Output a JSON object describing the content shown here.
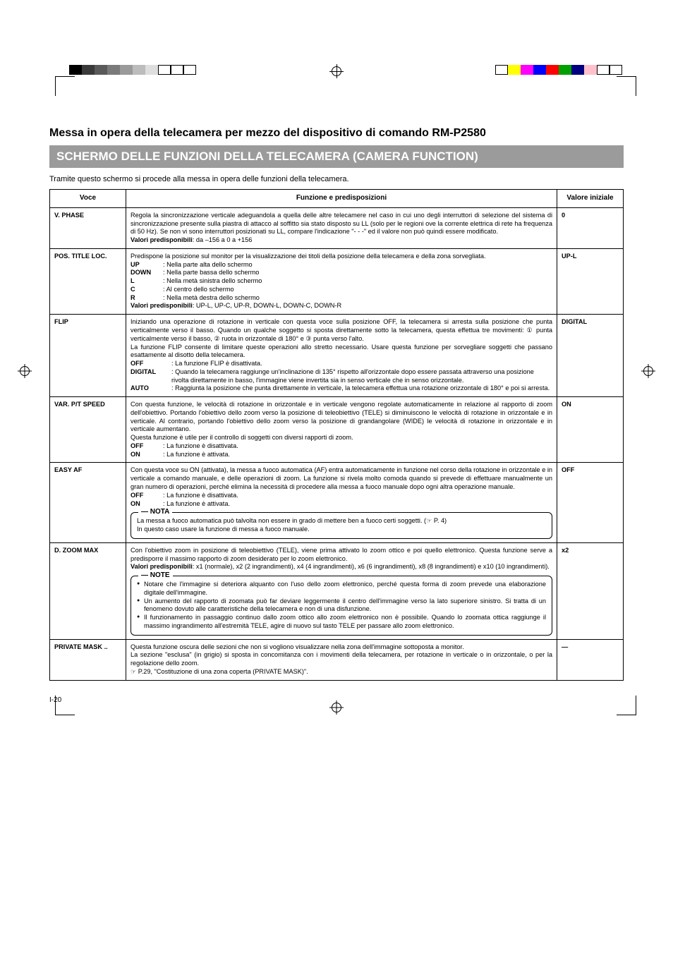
{
  "heading": "Messa in opera della telecamera per mezzo del dispositivo di comando RM-P2580",
  "banner": "SCHERMO DELLE FUNZIONI DELLA TELECAMERA (CAMERA FUNCTION)",
  "intro": "Tramite questo schermo si procede alla messa in opera delle funzioni della telecamera.",
  "columns": {
    "voce": "Voce",
    "funzione": "Funzione e predisposizioni",
    "valore": "Valore iniziale"
  },
  "rows": {
    "vphase": {
      "voce": "V. PHASE",
      "val": "0",
      "p1": "Regola la sincronizzazione verticale adeguandola a quella delle altre telecamere nel caso in cui uno degli interruttori di selezione del sistema di sincronizzazione presente sulla piastra di attacco al soffitto sia stato disposto su LL (solo per le regioni ove la corrente elettrica di rete ha frequenza di 50 Hz). Se non vi sono interruttori posizionati su LL, compare l'indicazione \"- - -\" ed il valore non può quindi essere modificato.",
      "preset_label": "Valori predisponibili",
      "preset": ": da –156 a 0 a +156"
    },
    "postitle": {
      "voce": "POS. TITLE LOC.",
      "val": "UP-L",
      "p1": "Predispone la posizione sul monitor per la visualizzazione dei titoli della posizione della telecamera e della zona sorvegliata.",
      "opts": [
        {
          "k": "UP",
          "v": ": Nella parte alta dello schermo"
        },
        {
          "k": "DOWN",
          "v": ": Nella parte bassa dello schermo"
        },
        {
          "k": "L",
          "v": ": Nella metà sinistra dello schermo"
        },
        {
          "k": "C",
          "v": ": Al centro dello schermo"
        },
        {
          "k": "R",
          "v": ": Nella metà destra dello schermo"
        }
      ],
      "preset_label": "Valori predisponibili",
      "preset": ": UP-L, UP-C, UP-R, DOWN-L, DOWN-C, DOWN-R"
    },
    "flip": {
      "voce": "FLIP",
      "val": "DIGITAL",
      "p1": "Iniziando una operazione di rotazione in verticale con questa voce sulla posizione OFF, la telecamera si arresta sulla posizione che punta verticalmente verso il basso. Quando un qualche soggetto si sposta direttamente sotto la telecamera, questa effettua tre movimenti: ① punta verticalmente verso il basso, ② ruota in orizzontale di 180° e ③ punta verso l'alto.",
      "p2": "La funzione FLIP consente di limitare queste operazioni allo stretto necessario. Usare questa funzione per sorvegliare soggetti che passano esattamente al disotto della telecamera.",
      "opts": [
        {
          "k": "OFF",
          "v": ": La funzione FLIP è disattivata."
        },
        {
          "k": "DIGITAL",
          "v": ": Quando la telecamera raggiunge un'inclinazione di 135° rispetto all'orizzontale dopo essere passata attraverso una posizione rivolta direttamente in basso, l'immagine viene invertita sia in senso verticale che in senso orizzontale."
        },
        {
          "k": "AUTO",
          "v": ": Raggiunta la posizione che punta direttamente in verticale, la telecamera effettua una rotazione orizzontale di 180° e poi si arresta."
        }
      ]
    },
    "varpt": {
      "voce": "VAR. P/T SPEED",
      "val": "ON",
      "p1": "Con questa funzione, le velocità di rotazione in orizzontale e in verticale vengono regolate automaticamente in relazione al rapporto di zoom dell'obiettivo. Portando l'obiettivo dello zoom verso la posizione di teleobiettivo (TELE) si diminuiscono le velocità di rotazione in orizzontale e in verticale. Al contrario, portando l'obiettivo dello zoom verso la posizione di grandangolare (WIDE) le velocità di rotazione in orizzontale e in verticale aumentano.",
      "p2": "Questa funzione è utile per il controllo di soggetti con diversi rapporti di zoom.",
      "opts": [
        {
          "k": "OFF",
          "v": ": La funzione è disattivata."
        },
        {
          "k": "ON",
          "v": ": La funzione è attivata."
        }
      ]
    },
    "easyaf": {
      "voce": "EASY AF",
      "val": "OFF",
      "p1": "Con questa voce su ON (attivata), la messa a fuoco automatica (AF) entra automaticamente in funzione nel corso della rotazione in orizzontale e in verticale a comando manuale, e delle operazioni di zoom. La funzione si rivela molto comoda quando si prevede di effettuare manualmente un gran numero di operazioni, perché elimina la necessità di procedere alla messa a fuoco manuale dopo ogni altra operazione manuale.",
      "opts": [
        {
          "k": "OFF",
          "v": ": La funzione è disattivata."
        },
        {
          "k": "ON",
          "v": ": La funzione è attivata."
        }
      ],
      "note_title": "NOTA",
      "note1": "La messa a fuoco automatica può talvolta non essere in grado di mettere ben a fuoco certi soggetti. (☞ P. 4)",
      "note2": "In questo caso usare la funzione di messa a fuoco manuale."
    },
    "dzoom": {
      "voce": "D. ZOOM MAX",
      "val": "x2",
      "p1": "Con l'obiettivo zoom in posizione di teleobiettivo (TELE), viene prima attivato lo zoom ottico e poi quello elettronico. Questa funzione serve a predisporre il massimo rapporto di zoom desiderato per lo zoom elettronico.",
      "preset_label": "Valori predisponibili",
      "preset": ": x1 (normale), x2 (2 ingrandimenti), x4 (4 ingrandimenti), x6 (6 ingrandimenti), x8 (8 ingrandimenti) e x10 (10 ingrandimenti).",
      "note_title": "NOTE",
      "bullets": [
        "Notare che l'immagine si deteriora alquanto con l'uso dello zoom elettronico, perché questa forma di zoom prevede una elaborazione digitale dell'immagine.",
        "Un aumento del rapporto di zoomata può far deviare leggermente il centro dell'immagine verso la lato superiore sinistro. Si tratta di un fenomeno dovuto alle caratteristiche della telecamera e non di una disfunzione.",
        "Il funzionamento in passaggio continuo dallo zoom ottico allo zoom elettronico non è possibile. Quando lo zoomata ottica raggiunge il massimo ingrandimento all'estremità TELE, agire di nuovo sul tasto TELE per passare allo zoom elettronico."
      ]
    },
    "privmask": {
      "voce": "PRIVATE MASK ..",
      "val": "—",
      "p1": "Questa funzione oscura delle sezioni che non si vogliono visualizzare nella zona dell'immagine sottoposta a monitor.",
      "p2": "La sezione \"esclusa\" (in grigio) si sposta in concomitanza con i movimenti della telecamera, per rotazione in verticale o in orizzontale, o per la regolazione dello zoom.",
      "p3": "☞ P.29, \"Costituzione di una zona coperta (PRIVATE MASK)\"."
    }
  },
  "footer": "I-20",
  "reg_colors_left": [
    "#000000",
    "#3a3a3a",
    "#5a5a5a",
    "#7a7a7a",
    "#9a9a9a",
    "#bcbcbc",
    "#dedede",
    "#ffffff",
    "#ffffff",
    "#ffffff"
  ],
  "reg_colors_right": [
    "#ffffff",
    "#ffff00",
    "#ff00ff",
    "#0000ff",
    "#ff0000",
    "#00a000",
    "#000080",
    "#ffc0cb",
    "#ffffff",
    "#ffffff"
  ]
}
